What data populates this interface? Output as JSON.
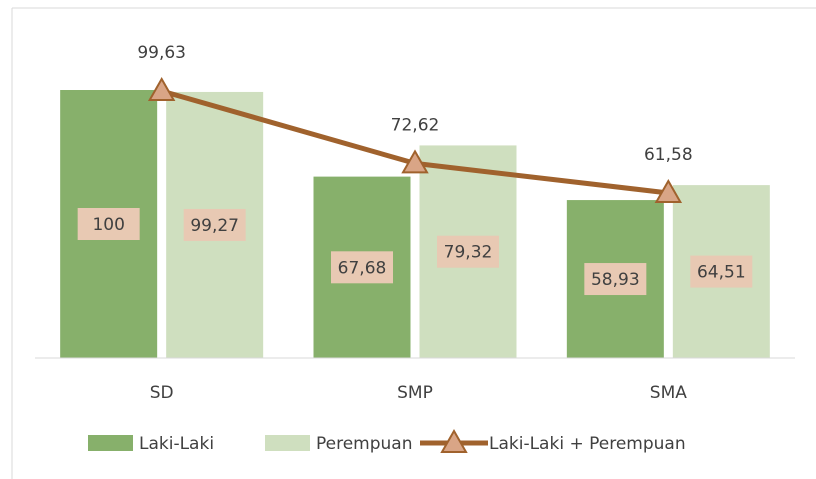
{
  "chart_data": {
    "type": "bar",
    "categories": [
      "SD",
      "SMP",
      "SMA"
    ],
    "series": [
      {
        "name": "Laki-Laki",
        "type": "bar",
        "color": "#87b06b",
        "values": [
          100,
          67.68,
          58.93
        ],
        "value_labels": [
          "100",
          "67,68",
          "58,93"
        ]
      },
      {
        "name": "Perempuan",
        "type": "bar",
        "color": "#cfdfbf",
        "values": [
          99.27,
          79.32,
          64.51
        ],
        "value_labels": [
          "99,27",
          "79,32",
          "64,51"
        ]
      },
      {
        "name": "Laki-Laki + Perempuan",
        "type": "line",
        "color": "#a0622d",
        "values": [
          99.63,
          72.62,
          61.58
        ],
        "value_labels": [
          "99,63",
          "72,62",
          "61,58"
        ]
      }
    ],
    "ylim": [
      0,
      100
    ]
  }
}
